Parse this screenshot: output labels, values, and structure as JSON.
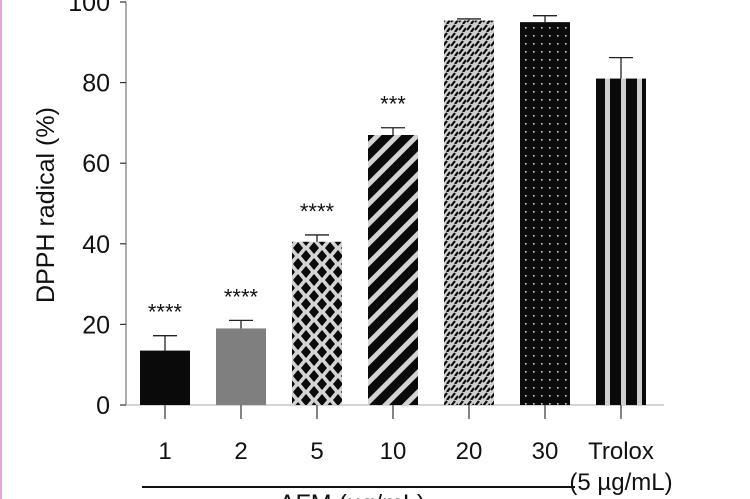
{
  "chart_data": {
    "type": "bar",
    "title": "",
    "xlabel": "AFM (µg/mL)",
    "ylabel": "DPPH radical (%)",
    "ylim": [
      0,
      100
    ],
    "yticks": [
      "0",
      "20",
      "40",
      "60",
      "80",
      "100"
    ],
    "ytick_values": [
      0,
      20,
      40,
      60,
      80,
      100
    ],
    "grid": false,
    "categories": [
      "1",
      "2",
      "5",
      "10",
      "20",
      "30",
      "Trolox"
    ],
    "category_sublabels": [
      "",
      "",
      "",
      "",
      "",
      "",
      "(5 µg/mL)"
    ],
    "values": [
      13.5,
      19.0,
      40.5,
      67.0,
      95.4,
      95.0,
      81.0
    ],
    "errors": [
      3.7,
      2.0,
      1.7,
      1.8,
      0.4,
      1.6,
      5.2
    ],
    "significance": [
      "****",
      "****",
      "****",
      "***",
      "",
      "",
      ""
    ],
    "fills": [
      "solid-black",
      "solid-gray",
      "diamond-lattice",
      "diagonal-stripes",
      "dash-weave",
      "dotted-black",
      "vertical-stripes"
    ],
    "colors": {
      "black": "#0a0a0a",
      "gray": "#7f7f7f",
      "light": "#d4d4d4"
    }
  }
}
